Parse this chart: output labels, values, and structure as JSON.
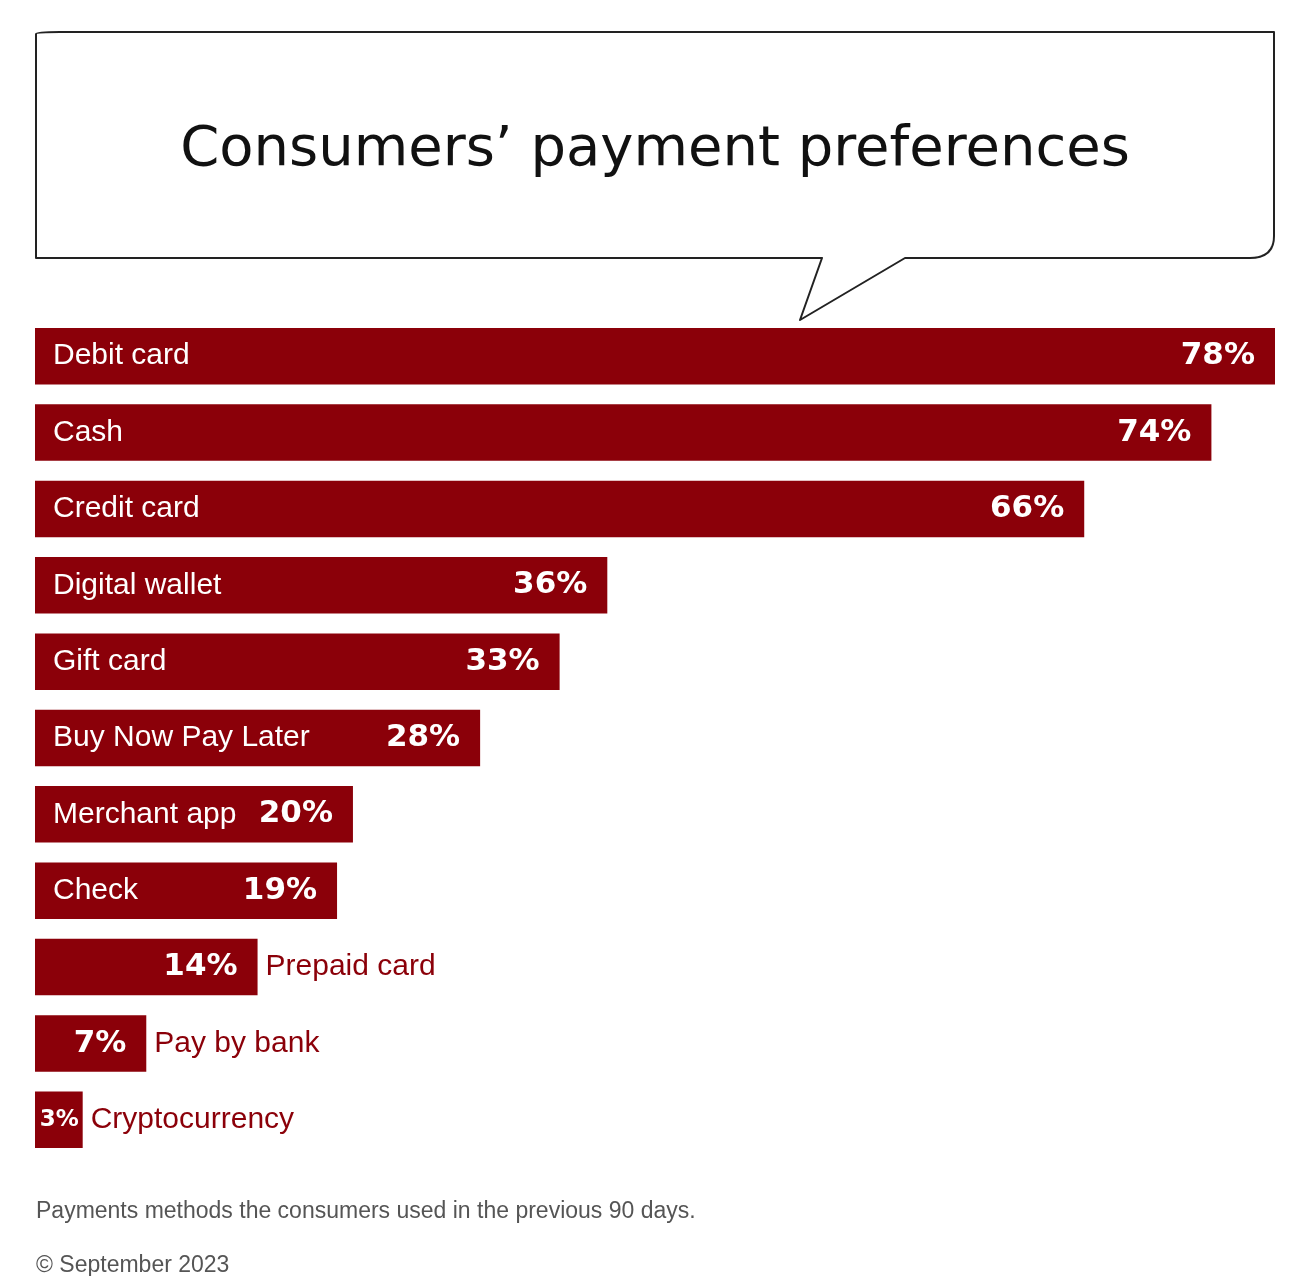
{
  "chart_data": {
    "type": "bar",
    "orientation": "horizontal",
    "title": "Consumers’ payment preferences",
    "categories": [
      "Debit card",
      "Cash",
      "Credit card",
      "Digital wallet",
      "Gift card",
      "Buy Now Pay Later",
      "Merchant app",
      "Check",
      "Prepaid card",
      "Pay by bank",
      "Cryptocurrency"
    ],
    "values": [
      78,
      74,
      66,
      36,
      33,
      28,
      20,
      19,
      14,
      7,
      3
    ],
    "value_labels": [
      "78%",
      "74%",
      "66%",
      "36%",
      "33%",
      "28%",
      "20%",
      "19%",
      "14%",
      "7%",
      "3%"
    ],
    "color": "#8b0009",
    "legend": false,
    "annotations": [
      "Payments methods the consumers used in the previous 90 days.",
      "© September 2023"
    ]
  }
}
